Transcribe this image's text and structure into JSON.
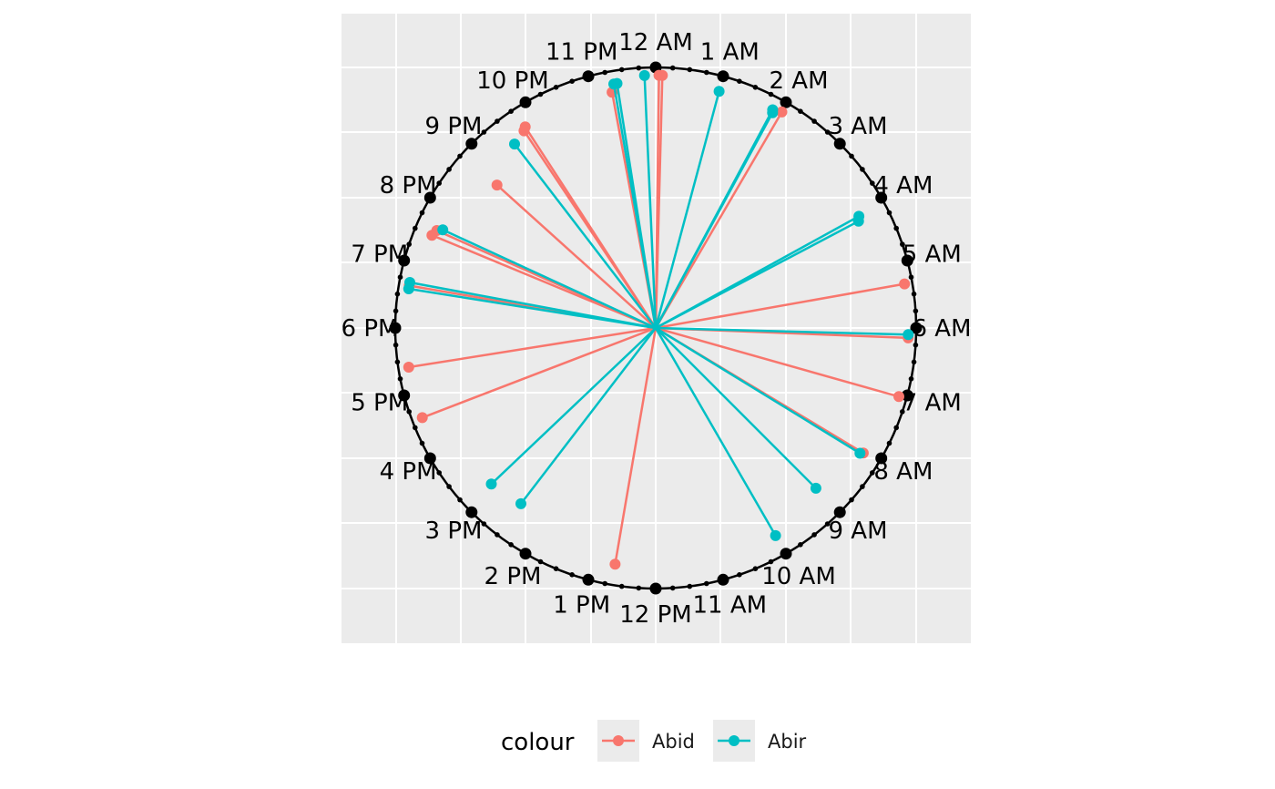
{
  "chart_data": {
    "type": "polar-clock",
    "hour_labels": [
      "12 AM",
      "1 AM",
      "2 AM",
      "3 AM",
      "4 AM",
      "5 AM",
      "6 AM",
      "7 AM",
      "8 AM",
      "9 AM",
      "10 AM",
      "11 AM",
      "12 PM",
      "1 PM",
      "2 PM",
      "3 PM",
      "4 PM",
      "5 PM",
      "6 PM",
      "7 PM",
      "8 PM",
      "9 PM",
      "10 PM",
      "11 PM"
    ],
    "minor_ticks_per_hour": 4,
    "radius_range": [
      0,
      1
    ],
    "grid": true,
    "legend": {
      "title": "colour",
      "position": "bottom",
      "entries": [
        {
          "label": "Abid",
          "color": "#F8766D"
        },
        {
          "label": "Abir",
          "color": "#00BFC4"
        }
      ]
    },
    "series": [
      {
        "name": "Abid",
        "color": "#F8766D",
        "points": [
          {
            "time_h": 0.05,
            "r": 0.97
          },
          {
            "time_h": 0.1,
            "r": 0.97
          },
          {
            "time_h": 23.3,
            "r": 0.92
          },
          {
            "time_h": 21.8,
            "r": 0.92
          },
          {
            "time_h": 21.75,
            "r": 0.91
          },
          {
            "time_h": 2.02,
            "r": 0.96
          },
          {
            "time_h": 20.8,
            "r": 0.82
          },
          {
            "time_h": 19.6,
            "r": 0.92
          },
          {
            "time_h": 19.5,
            "r": 0.93
          },
          {
            "time_h": 18.65,
            "r": 0.96
          },
          {
            "time_h": 5.33,
            "r": 0.97
          },
          {
            "time_h": 6.15,
            "r": 0.97
          },
          {
            "time_h": 17.4,
            "r": 0.96
          },
          {
            "time_h": 7.05,
            "r": 0.97
          },
          {
            "time_h": 8.07,
            "r": 0.93
          },
          {
            "time_h": 16.6,
            "r": 0.96
          },
          {
            "time_h": 12.65,
            "r": 0.92
          }
        ]
      },
      {
        "name": "Abir",
        "color": "#00BFC4",
        "points": [
          {
            "time_h": 23.83,
            "r": 0.97
          },
          {
            "time_h": 23.4,
            "r": 0.95
          },
          {
            "time_h": 23.35,
            "r": 0.95
          },
          {
            "time_h": 1.0,
            "r": 0.94
          },
          {
            "time_h": 1.88,
            "r": 0.95
          },
          {
            "time_h": 1.9,
            "r": 0.94
          },
          {
            "time_h": 21.5,
            "r": 0.89
          },
          {
            "time_h": 19.65,
            "r": 0.9
          },
          {
            "time_h": 18.7,
            "r": 0.96
          },
          {
            "time_h": 18.6,
            "r": 0.96
          },
          {
            "time_h": 4.08,
            "r": 0.89
          },
          {
            "time_h": 4.15,
            "r": 0.88
          },
          {
            "time_h": 6.1,
            "r": 0.97
          },
          {
            "time_h": 8.1,
            "r": 0.92
          },
          {
            "time_h": 9.0,
            "r": 0.87
          },
          {
            "time_h": 10.0,
            "r": 0.92
          },
          {
            "time_h": 15.1,
            "r": 0.87
          },
          {
            "time_h": 14.5,
            "r": 0.85
          }
        ]
      }
    ]
  }
}
